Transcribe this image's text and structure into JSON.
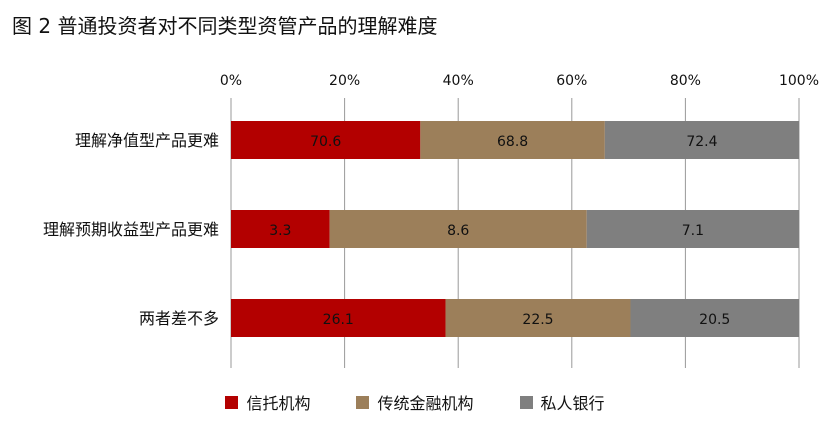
{
  "chart_data": {
    "type": "bar",
    "orientation": "horizontal",
    "stacking": "percent",
    "title": "图 2  普通投资者对不同类型资管产品的理解难度",
    "categories": [
      "理解净值型产品更难",
      "理解预期收益型产品更难",
      "两者差不多"
    ],
    "series": [
      {
        "name": "信托机构",
        "values": [
          70.6,
          3.3,
          26.1
        ],
        "color": "#b30000"
      },
      {
        "name": "传统金融机构",
        "values": [
          68.8,
          8.6,
          22.5
        ],
        "color": "#9c7f5a"
      },
      {
        "name": "私人银行",
        "values": [
          72.4,
          7.1,
          20.5
        ],
        "color": "#7f7f7f"
      }
    ],
    "x_ticks": [
      "0%",
      "20%",
      "40%",
      "60%",
      "80%",
      "100%"
    ],
    "xlim": [
      0,
      100
    ],
    "grid": true,
    "legend_position": "bottom"
  }
}
